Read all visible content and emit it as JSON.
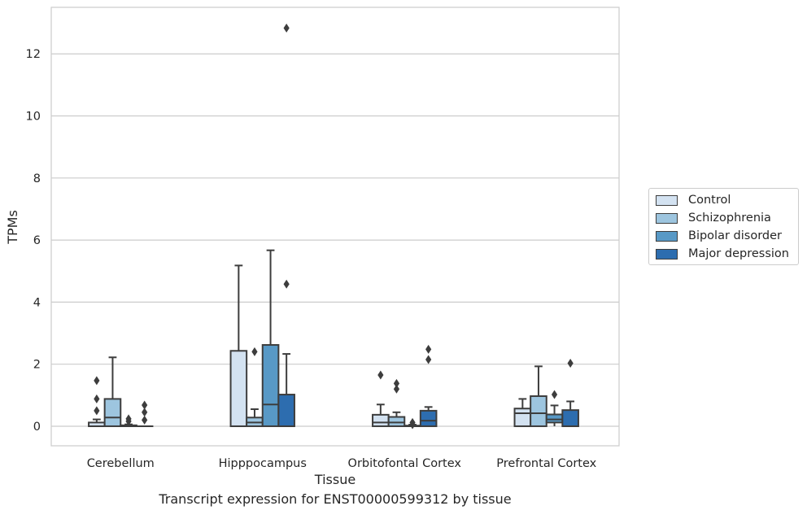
{
  "chart_data": {
    "type": "box",
    "title": "",
    "caption": "Transcript expression for ENST00000599312 by tissue",
    "xlabel": "Tissue",
    "ylabel": "TPMs",
    "ylim": [
      -0.63,
      13.5
    ],
    "yticks": [
      0,
      2,
      4,
      6,
      8,
      10,
      12
    ],
    "grid": "horizontal",
    "legend_position": "right",
    "categories": [
      "Cerebellum",
      "Hipppocampus",
      "Orbitofontal Cortex",
      "Prefrontal Cortex"
    ],
    "series": [
      {
        "name": "Control",
        "color": "#d3e2f1",
        "boxes": [
          {
            "min": 0,
            "q1": 0,
            "median": 0,
            "q3": 0.12,
            "max": 0.22,
            "outliers": [
              0.5,
              0.88,
              1.47
            ]
          },
          {
            "min": 0,
            "q1": 0,
            "median": 0,
            "q3": 2.43,
            "max": 5.18,
            "outliers": []
          },
          {
            "min": 0,
            "q1": 0,
            "median": 0.12,
            "q3": 0.37,
            "max": 0.7,
            "outliers": [
              1.65
            ]
          },
          {
            "min": 0,
            "q1": 0,
            "median": 0.42,
            "q3": 0.57,
            "max": 0.88,
            "outliers": []
          }
        ]
      },
      {
        "name": "Schizophrenia",
        "color": "#9dc5df",
        "boxes": [
          {
            "min": 0,
            "q1": 0,
            "median": 0.28,
            "q3": 0.88,
            "max": 2.22,
            "outliers": []
          },
          {
            "min": 0,
            "q1": 0,
            "median": 0.12,
            "q3": 0.28,
            "max": 0.55,
            "outliers": [
              2.4
            ]
          },
          {
            "min": 0,
            "q1": 0,
            "median": 0.12,
            "q3": 0.3,
            "max": 0.45,
            "outliers": [
              1.2,
              1.38
            ]
          },
          {
            "min": 0,
            "q1": 0,
            "median": 0.42,
            "q3": 0.97,
            "max": 1.93,
            "outliers": []
          }
        ]
      },
      {
        "name": "Bipolar disorder",
        "color": "#5899c6",
        "boxes": [
          {
            "min": 0,
            "q1": 0,
            "median": 0,
            "q3": 0.03,
            "max": 0.06,
            "outliers": [
              0.16,
              0.24
            ]
          },
          {
            "min": 0,
            "q1": 0,
            "median": 0.7,
            "q3": 2.62,
            "max": 5.67,
            "outliers": []
          },
          {
            "min": 0,
            "q1": 0,
            "median": 0,
            "q3": 0.02,
            "max": 0.05,
            "outliers": [
              0.05,
              0.12
            ]
          },
          {
            "min": 0,
            "q1": 0.12,
            "median": 0.22,
            "q3": 0.38,
            "max": 0.67,
            "outliers": [
              1.02
            ]
          }
        ]
      },
      {
        "name": "Major depression",
        "color": "#2d6daf",
        "boxes": [
          {
            "min": 0,
            "q1": 0,
            "median": 0,
            "q3": 0,
            "max": 0,
            "outliers": [
              0.2,
              0.45,
              0.68
            ]
          },
          {
            "min": 0,
            "q1": 0,
            "median": 0,
            "q3": 1.02,
            "max": 2.33,
            "outliers": [
              4.58,
              12.83
            ]
          },
          {
            "min": 0,
            "q1": 0,
            "median": 0.18,
            "q3": 0.5,
            "max": 0.62,
            "outliers": [
              2.15,
              2.48
            ]
          },
          {
            "min": 0,
            "q1": 0,
            "median": 0,
            "q3": 0.52,
            "max": 0.8,
            "outliers": [
              2.03
            ]
          }
        ]
      }
    ]
  }
}
